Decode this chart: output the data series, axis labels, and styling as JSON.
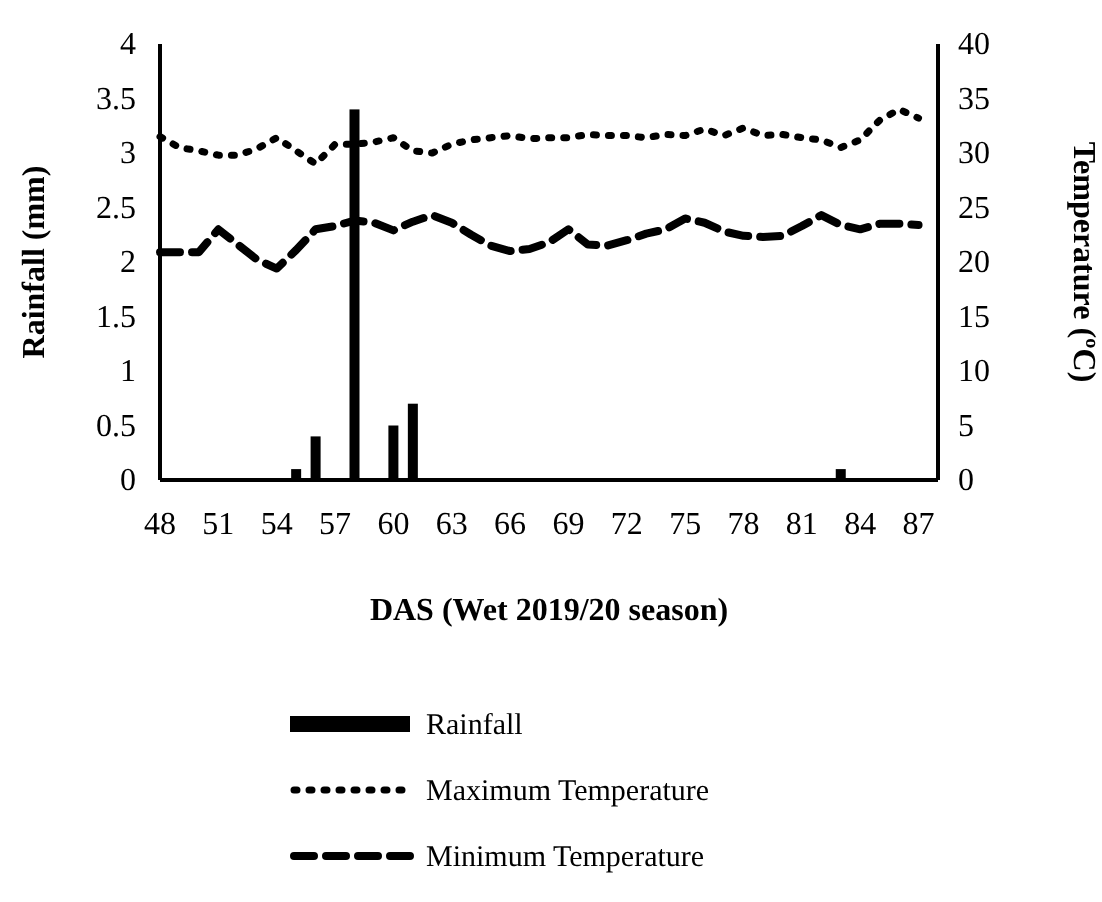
{
  "chart_data": {
    "type": "bar",
    "xlabel": "DAS (Wet 2019/20 season)",
    "ylabel": "Rainfall (mm)",
    "y2label": "Temperature (ºC)",
    "x": [
      48,
      49,
      50,
      51,
      52,
      53,
      54,
      55,
      56,
      57,
      58,
      59,
      60,
      61,
      62,
      63,
      64,
      65,
      66,
      67,
      68,
      69,
      70,
      71,
      72,
      73,
      74,
      75,
      76,
      77,
      78,
      79,
      80,
      81,
      82,
      83,
      84,
      85,
      86,
      87
    ],
    "xlim": [
      48,
      88
    ],
    "xticks": [
      48,
      51,
      54,
      57,
      60,
      63,
      66,
      69,
      72,
      75,
      78,
      81,
      84,
      87
    ],
    "ylim": [
      0,
      4
    ],
    "yticks": [
      0,
      0.5,
      1,
      1.5,
      2,
      2.5,
      3,
      3.5,
      4
    ],
    "y2lim": [
      0,
      40
    ],
    "y2ticks": [
      0,
      5,
      10,
      15,
      20,
      25,
      30,
      35,
      40
    ],
    "legend": "bottom",
    "grid": false,
    "series": [
      {
        "name": "Rainfall",
        "color": "#000000",
        "values": [
          0,
          0,
          0,
          0,
          0,
          0,
          0,
          0.1,
          0.4,
          0,
          3.4,
          0,
          0.5,
          0.7,
          0,
          0,
          0,
          0,
          0,
          0,
          0,
          0,
          0,
          0,
          0,
          0,
          0,
          0,
          0,
          0,
          0,
          0,
          0,
          0,
          0,
          0.1,
          0,
          0,
          0,
          0
        ]
      },
      {
        "name": "Maximum Temperature",
        "type": "line",
        "axis": "y2",
        "line_style": "dotted",
        "color": "#000000",
        "values": [
          31.5,
          30.5,
          30.2,
          29.8,
          29.8,
          30.4,
          31.4,
          30.2,
          29,
          30.8,
          30.8,
          31,
          31.4,
          30.2,
          30,
          30.8,
          31.2,
          31.4,
          31.6,
          31.3,
          31.4,
          31.4,
          31.7,
          31.6,
          31.6,
          31.4,
          31.7,
          31.6,
          32.2,
          31.6,
          32.3,
          31.6,
          31.7,
          31.4,
          31.2,
          30.5,
          31.2,
          33,
          34,
          33.2
        ]
      },
      {
        "name": "Minimum Temperature",
        "type": "line",
        "axis": "y2",
        "line_style": "dashed",
        "color": "#000000",
        "values": [
          20.9,
          20.9,
          20.9,
          23,
          21.6,
          20.2,
          19.4,
          21.1,
          23,
          23.3,
          23.8,
          23.6,
          22.9,
          23.7,
          24.3,
          23.6,
          22.5,
          21.5,
          21,
          21.2,
          21.8,
          23,
          21.6,
          21.5,
          22,
          22.6,
          23,
          24,
          23.6,
          22.8,
          22.4,
          22.3,
          22.4,
          23.3,
          24.3,
          23.4,
          23,
          23.5,
          23.5,
          23.4
        ]
      }
    ]
  }
}
